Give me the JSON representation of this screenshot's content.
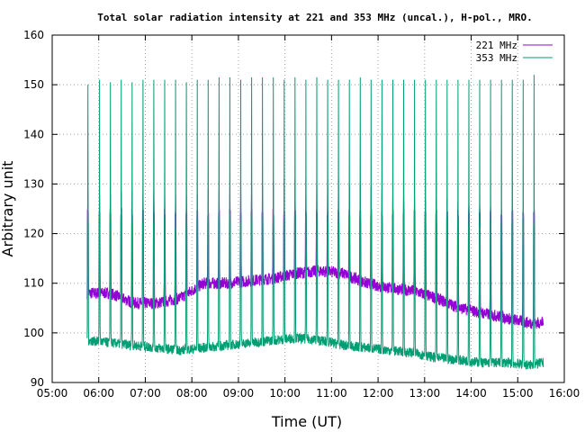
{
  "chart_data": {
    "type": "line",
    "title": "Total solar radiation intensity at 221 and 353 MHz (uncal.), H-pol., MRO.",
    "xlabel": "Time (UT)",
    "ylabel": "Arbitrary unit",
    "xlim": [
      "05:00",
      "16:00"
    ],
    "ylim": [
      90,
      160
    ],
    "x_ticks": [
      "05:00",
      "06:00",
      "07:00",
      "08:00",
      "09:00",
      "10:00",
      "11:00",
      "12:00",
      "13:00",
      "14:00",
      "15:00",
      "16:00"
    ],
    "y_ticks": [
      90,
      100,
      110,
      120,
      130,
      140,
      150,
      160
    ],
    "grid": true,
    "legend_position": "top-right",
    "x_range": [
      "05:45",
      "15:33"
    ],
    "series": [
      {
        "name": "221 MHz",
        "color": "#9400d3",
        "baseline": {
          "x": [
            "05:45",
            "06:15",
            "06:45",
            "07:15",
            "07:45",
            "08:15",
            "08:45",
            "09:15",
            "09:45",
            "10:15",
            "10:45",
            "11:15",
            "11:45",
            "12:15",
            "12:45",
            "13:15",
            "13:45",
            "14:15",
            "14:45",
            "15:15",
            "15:33"
          ],
          "y": [
            108,
            108,
            106,
            106,
            107,
            110,
            110,
            110.5,
            111,
            112,
            112.5,
            112,
            110,
            109,
            108.5,
            107,
            105,
            104,
            103,
            102,
            102
          ]
        },
        "calibration_peaks": {
          "x": [
            "05:46",
            "06:01",
            "06:15",
            "06:29",
            "06:43",
            "06:57",
            "07:11",
            "07:25",
            "07:39",
            "07:53",
            "08:07",
            "08:21",
            "08:35",
            "08:49",
            "09:03",
            "09:17",
            "09:31",
            "09:45",
            "09:59",
            "10:13",
            "10:27",
            "10:41",
            "10:55",
            "11:09",
            "11:23",
            "11:37",
            "11:51",
            "12:05",
            "12:19",
            "12:33",
            "12:47",
            "13:01",
            "13:15",
            "13:29",
            "13:43",
            "13:57",
            "14:11",
            "14:25",
            "14:39",
            "14:53",
            "15:07",
            "15:21"
          ],
          "y": [
            129,
            128,
            128,
            128.5,
            128.5,
            128.5,
            128.5,
            128,
            128,
            128,
            128,
            129,
            129,
            129.5,
            130,
            130,
            130.5,
            130.5,
            131,
            131,
            131,
            131,
            131,
            131,
            130,
            130,
            129.5,
            129,
            128,
            127.5,
            127,
            127,
            127,
            127,
            126.5,
            126,
            126,
            125.5,
            125,
            125,
            124.5,
            124
          ]
        }
      },
      {
        "name": "353 MHz",
        "color": "#009e73",
        "baseline": {
          "x": [
            "05:45",
            "06:15",
            "06:45",
            "07:15",
            "07:45",
            "08:15",
            "08:45",
            "09:15",
            "09:45",
            "10:15",
            "10:45",
            "11:15",
            "11:45",
            "12:15",
            "12:45",
            "13:15",
            "13:45",
            "14:15",
            "14:45",
            "15:15",
            "15:33"
          ],
          "y": [
            98.5,
            98,
            97.5,
            97,
            96.5,
            97,
            97.5,
            98,
            98.5,
            99,
            98.5,
            97.5,
            97,
            96.5,
            96,
            95,
            94.5,
            94,
            94,
            93.5,
            94
          ]
        },
        "calibration_peaks": {
          "x": [
            "05:46",
            "06:01",
            "06:15",
            "06:29",
            "06:43",
            "06:57",
            "07:11",
            "07:25",
            "07:39",
            "07:53",
            "08:07",
            "08:21",
            "08:35",
            "08:49",
            "09:03",
            "09:17",
            "09:31",
            "09:45",
            "09:59",
            "10:13",
            "10:27",
            "10:41",
            "10:55",
            "11:09",
            "11:23",
            "11:37",
            "11:51",
            "12:05",
            "12:19",
            "12:33",
            "12:47",
            "13:01",
            "13:15",
            "13:29",
            "13:43",
            "13:57",
            "14:11",
            "14:25",
            "14:39",
            "14:53",
            "15:07",
            "15:21"
          ],
          "y": [
            150,
            151,
            150.5,
            151,
            150.5,
            151,
            151,
            151,
            151,
            150.5,
            151,
            151,
            151.5,
            151.5,
            151,
            151.5,
            151.5,
            151.5,
            151,
            151.5,
            151,
            151.5,
            151,
            151,
            151,
            151.5,
            151,
            151,
            151,
            151,
            151,
            151,
            151,
            151,
            151,
            151,
            151,
            151,
            151,
            151,
            151,
            152
          ]
        }
      }
    ]
  }
}
